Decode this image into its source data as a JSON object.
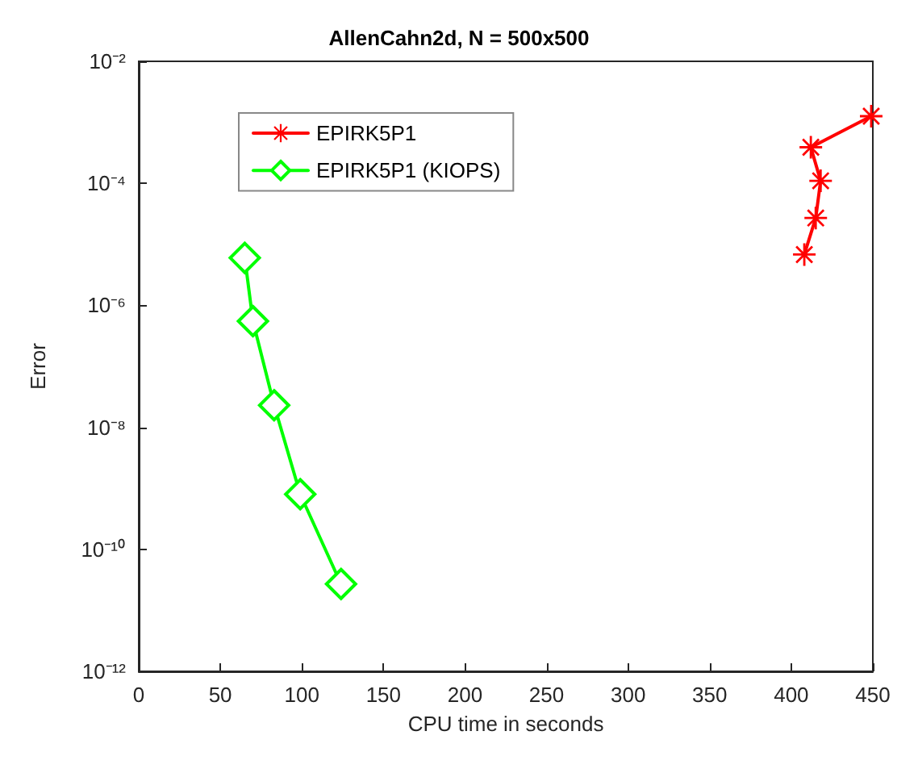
{
  "chart_data": {
    "type": "line",
    "title": "AllenCahn2d, N = 500x500",
    "xlabel": "CPU time in seconds",
    "ylabel": "Error",
    "log": "y",
    "grid": false,
    "legend": "top left",
    "line_style": "solid",
    "xlim": [
      0,
      450
    ],
    "xticks": [
      0,
      50,
      100,
      150,
      200,
      250,
      300,
      350,
      400,
      450
    ],
    "ylim": [
      1e-12,
      0.01
    ],
    "yticks": [
      {
        "value": 1e-12,
        "label": "10⁻¹²"
      },
      {
        "value": 1e-10,
        "label": "10⁻¹⁰"
      },
      {
        "value": 1e-08,
        "label": "10⁻⁸"
      },
      {
        "value": 1e-06,
        "label": "10⁻⁶"
      },
      {
        "value": 0.0001,
        "label": "10⁻⁴"
      },
      {
        "value": 0.01,
        "label": "10⁻²"
      }
    ],
    "series": [
      {
        "name": "EPIRK5P1",
        "color": "#ff0000",
        "marker": "star",
        "x": [
          449,
          412,
          418,
          415,
          408
        ],
        "values": [
          0.00126,
          0.00039,
          0.00011,
          2.7e-05,
          6.8e-06
        ]
      },
      {
        "name": "EPIRK5P1 (KIOPS)",
        "color": "#00ff00",
        "marker": "diamond",
        "x": [
          65,
          70,
          83,
          99,
          124
        ],
        "values": [
          6e-06,
          5.5e-07,
          2.3e-08,
          8e-10,
          2.7e-11
        ]
      }
    ]
  }
}
